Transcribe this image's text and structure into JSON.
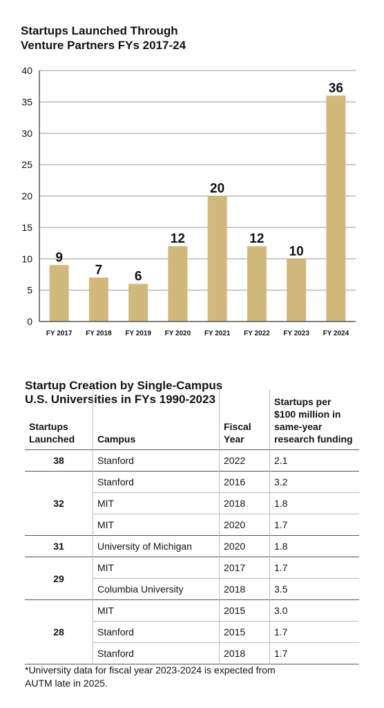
{
  "chart_data": {
    "type": "bar",
    "title_line1": "Startups Launched Through",
    "title_line2": "Venture Partners FYs 2017-24",
    "categories": [
      "FY 2017",
      "FY 2018",
      "FY 2019",
      "FY 2020",
      "FY 2021",
      "FY 2022",
      "FY 2023",
      "FY 2024"
    ],
    "values": [
      9,
      7,
      6,
      12,
      20,
      12,
      10,
      36
    ],
    "data_labels": [
      "9",
      "7",
      "6",
      "12",
      "20",
      "12",
      "10",
      "36"
    ],
    "ylim": [
      0,
      40
    ],
    "yticks": [
      0,
      5,
      10,
      15,
      20,
      25,
      30,
      35,
      40
    ],
    "ytick_labels": [
      "0",
      "5",
      "10",
      "15",
      "20",
      "25",
      "30",
      "35",
      "40"
    ],
    "grid": true,
    "bar_color": "#d1b97b"
  },
  "table": {
    "title_line1": "Startup Creation by Single-Campus",
    "title_line2": "U.S. Universities in FYs 1990-2023",
    "headers": {
      "launched": [
        "Startups",
        "Launched"
      ],
      "campus": "Campus",
      "year": [
        "Fiscal",
        "Year"
      ],
      "rate": [
        "Startups per",
        "$100 million in",
        "same-year",
        "research funding"
      ]
    },
    "groups": [
      {
        "launched": "38",
        "rows": [
          {
            "campus": "Stanford",
            "year": "2022",
            "rate": "2.1"
          }
        ]
      },
      {
        "launched": "32",
        "rows": [
          {
            "campus": "Stanford",
            "year": "2016",
            "rate": "3.2"
          },
          {
            "campus": "MIT",
            "year": "2018",
            "rate": "1.8"
          },
          {
            "campus": "MIT",
            "year": "2020",
            "rate": "1.7"
          }
        ]
      },
      {
        "launched": "31",
        "rows": [
          {
            "campus": "University of Michigan",
            "year": "2020",
            "rate": "1.8"
          }
        ]
      },
      {
        "launched": "29",
        "rows": [
          {
            "campus": "MIT",
            "year": "2017",
            "rate": "1.7"
          },
          {
            "campus": "Columbia University",
            "year": "2018",
            "rate": "3.5"
          }
        ]
      },
      {
        "launched": "28",
        "rows": [
          {
            "campus": "MIT",
            "year": "2015",
            "rate": "3.0"
          },
          {
            "campus": "Stanford",
            "year": "2015",
            "rate": "1.7"
          },
          {
            "campus": "Stanford",
            "year": "2018",
            "rate": "1.7"
          }
        ]
      }
    ]
  },
  "footnote": {
    "line1": "*University data for fiscal year 2023-2024 is expected from",
    "line2": "AUTM late in 2025."
  }
}
